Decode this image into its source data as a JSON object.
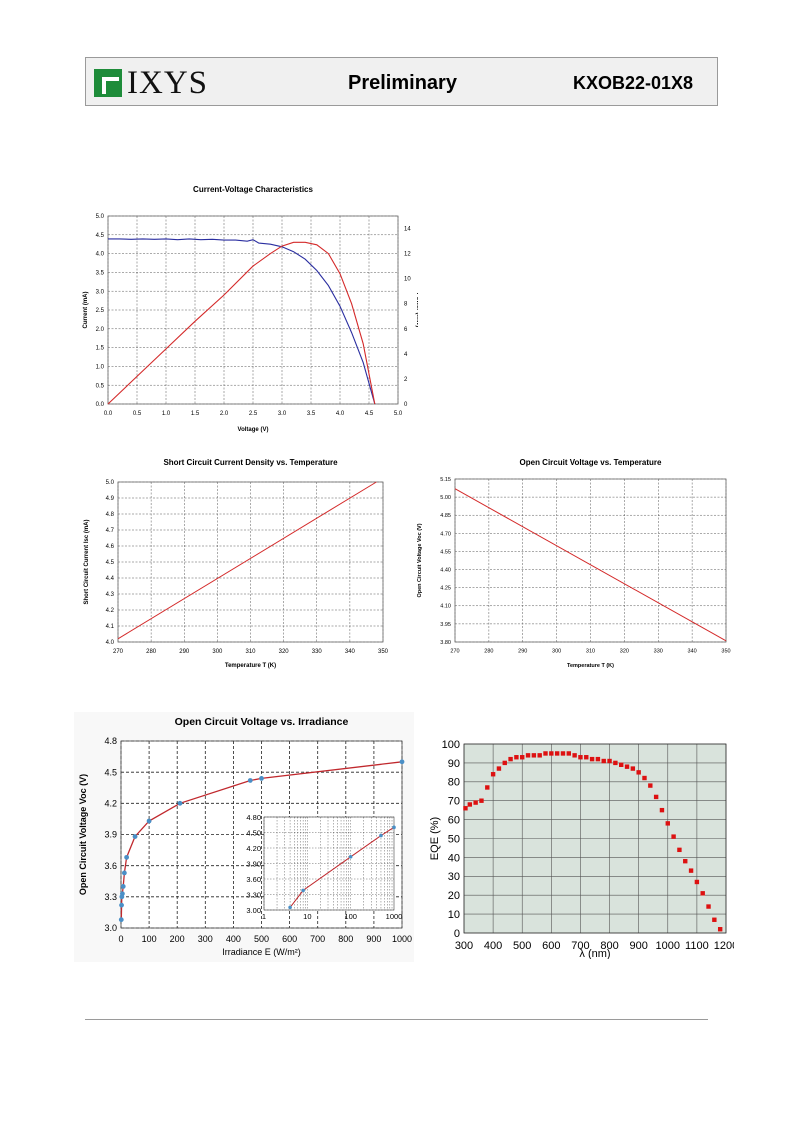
{
  "header": {
    "logo_text": "IXYS",
    "status": "Preliminary",
    "part_number": "KXOB22-01X8",
    "brand_color": "#1e8c3a"
  },
  "chart_data": [
    {
      "id": "c1",
      "type": "line",
      "title": "Current-Voltage Characteristics",
      "xlabel": "Voltage (V)",
      "ylabel": "Current  (mA)",
      "y2label": "Power (mW)",
      "xlim": [
        0,
        5
      ],
      "ylim": [
        0,
        5
      ],
      "y2lim": [
        0,
        15
      ],
      "xticks": [
        0,
        0.5,
        1,
        1.5,
        2,
        2.5,
        3,
        3.5,
        4,
        4.5,
        5
      ],
      "xtick_labels": [
        "0.0",
        "0.5",
        "1.0",
        "1.5",
        "2.0",
        "2.5",
        "3.0",
        "3.5",
        "4.0",
        "4.5",
        "5.0"
      ],
      "yticks": [
        0,
        0.5,
        1,
        1.5,
        2,
        2.5,
        3,
        3.5,
        4,
        4.5,
        5
      ],
      "ytick_labels": [
        "0.0",
        "0.5",
        "1.0",
        "1.5",
        "2.0",
        "2.5",
        "3.0",
        "3.5",
        "4.0",
        "4.5",
        "5.0"
      ],
      "y2ticks": [
        0,
        2,
        4,
        6,
        8,
        10,
        12,
        14
      ],
      "y2tick_labels": [
        "0",
        "2",
        "4",
        "6",
        "8",
        "10",
        "12",
        "14"
      ],
      "grid": true,
      "series": [
        {
          "color": "#2a2ea0",
          "axis": "y",
          "x": [
            0,
            0.2,
            0.4,
            0.6,
            0.8,
            1.0,
            1.2,
            1.4,
            1.6,
            1.8,
            2.0,
            2.2,
            2.4,
            2.5,
            2.6,
            2.8,
            3.0,
            3.2,
            3.4,
            3.6,
            3.8,
            4.0,
            4.2,
            4.4,
            4.5,
            4.6
          ],
          "y": [
            4.39,
            4.39,
            4.38,
            4.39,
            4.38,
            4.39,
            4.37,
            4.39,
            4.37,
            4.38,
            4.36,
            4.36,
            4.33,
            4.37,
            4.28,
            4.25,
            4.18,
            4.05,
            3.85,
            3.55,
            3.15,
            2.6,
            1.9,
            1.1,
            0.55,
            0
          ]
        },
        {
          "color": "#d42a2a",
          "axis": "y2",
          "x": [
            0,
            0.5,
            1.0,
            1.5,
            2.0,
            2.5,
            2.8,
            3.0,
            3.2,
            3.4,
            3.6,
            3.8,
            4.0,
            4.2,
            4.4,
            4.6
          ],
          "y": [
            0,
            2.2,
            4.4,
            6.6,
            8.7,
            11.0,
            12.0,
            12.6,
            12.9,
            12.9,
            12.7,
            12.0,
            10.4,
            8.0,
            4.8,
            0
          ]
        }
      ]
    },
    {
      "id": "c2",
      "type": "line",
      "title": "Short Circuit Current Density vs. Temperature",
      "xlabel": "Temperature T (K)",
      "ylabel": "Short Circuit Current Isc (mA)",
      "xlim": [
        270,
        350
      ],
      "ylim": [
        4.0,
        5.0
      ],
      "xticks": [
        270,
        280,
        290,
        300,
        310,
        320,
        330,
        340,
        350
      ],
      "xtick_labels": [
        "270",
        "280",
        "290",
        "300",
        "310",
        "320",
        "330",
        "340",
        "350"
      ],
      "yticks": [
        4.0,
        4.1,
        4.2,
        4.3,
        4.4,
        4.5,
        4.6,
        4.7,
        4.8,
        4.9,
        5.0
      ],
      "ytick_labels": [
        "4.0",
        "4.1",
        "4.2",
        "4.3",
        "4.4",
        "4.5",
        "4.6",
        "4.7",
        "4.8",
        "4.9",
        "5.0"
      ],
      "grid": true,
      "series": [
        {
          "color": "#d42a2a",
          "x": [
            270,
            348
          ],
          "y": [
            4.02,
            5.0
          ]
        }
      ]
    },
    {
      "id": "c3",
      "type": "line",
      "title": "Open Circuit Voltage vs. Temperature",
      "xlabel": "Temperature T (K)",
      "ylabel": "Open Circuit Voltage Voc (V)",
      "xlim": [
        270,
        350
      ],
      "ylim": [
        3.8,
        5.15
      ],
      "xticks": [
        270,
        280,
        290,
        300,
        310,
        320,
        330,
        340,
        350
      ],
      "xtick_labels": [
        "270",
        "280",
        "290",
        "300",
        "310",
        "320",
        "330",
        "340",
        "350"
      ],
      "yticks": [
        3.8,
        3.95,
        4.1,
        4.25,
        4.4,
        4.55,
        4.7,
        4.85,
        5.0,
        5.15
      ],
      "ytick_labels": [
        "3.80",
        "3.95",
        "4.10",
        "4.25",
        "4.40",
        "4.55",
        "4.70",
        "4.85",
        "5.00",
        "5.15"
      ],
      "grid": true,
      "series": [
        {
          "color": "#d42a2a",
          "x": [
            270,
            350
          ],
          "y": [
            5.07,
            3.81
          ]
        }
      ]
    },
    {
      "id": "c4",
      "type": "line",
      "title": "Open Circuit Voltage vs. Irradiance",
      "xlabel": "Irradiance E (W/m²)",
      "ylabel": "Open Circuit Voltage Voc (V)",
      "xlim": [
        0,
        1000
      ],
      "ylim": [
        3.0,
        4.8
      ],
      "xticks": [
        0,
        100,
        200,
        300,
        400,
        500,
        600,
        700,
        800,
        900,
        1000
      ],
      "xtick_labels": [
        "0",
        "100",
        "200",
        "300",
        "400",
        "500",
        "600",
        "700",
        "800",
        "900",
        "1000"
      ],
      "yticks": [
        3.0,
        3.3,
        3.6,
        3.9,
        4.2,
        4.5,
        4.8
      ],
      "ytick_labels": [
        "3.0",
        "3.3",
        "3.6",
        "3.9",
        "4.2",
        "4.5",
        "4.8"
      ],
      "grid": true,
      "series": [
        {
          "color": "#c0282d",
          "marker_color": "#4a8fc6",
          "x": [
            1,
            2,
            3,
            5,
            8,
            12,
            20,
            50,
            100,
            210,
            460,
            500,
            1000
          ],
          "y": [
            3.08,
            3.22,
            3.3,
            3.33,
            3.4,
            3.53,
            3.68,
            3.88,
            4.03,
            4.2,
            4.42,
            4.44,
            4.6
          ],
          "markers": [
            true,
            true,
            true,
            true,
            true,
            true,
            true,
            true,
            true,
            true,
            true,
            true,
            true
          ]
        }
      ],
      "inset": {
        "xscale": "log",
        "xlim": [
          1,
          1000
        ],
        "ylim": [
          3.0,
          4.8
        ],
        "xticks": [
          1,
          10,
          100,
          1000
        ],
        "xtick_labels": [
          "1",
          "10",
          "100",
          "1000"
        ],
        "yticks": [
          3.0,
          3.3,
          3.6,
          3.9,
          4.2,
          4.5,
          4.8
        ],
        "ytick_labels": [
          "3.00",
          "3.30",
          "3.60",
          "3.90",
          "4.20",
          "4.50",
          "4.80"
        ],
        "points_x": [
          4,
          8,
          100,
          500,
          1000
        ],
        "points_y": [
          3.05,
          3.38,
          4.03,
          4.44,
          4.6
        ]
      }
    },
    {
      "id": "c5",
      "type": "scatter",
      "xlabel": "λ (nm)",
      "ylabel": "EQE (%)",
      "xlim": [
        300,
        1200
      ],
      "ylim": [
        0,
        100
      ],
      "xticks": [
        300,
        400,
        500,
        600,
        700,
        800,
        900,
        1000,
        1100,
        1200
      ],
      "xtick_labels": [
        "300",
        "400",
        "500",
        "600",
        "700",
        "800",
        "900",
        "1000",
        "1100",
        "1200"
      ],
      "yticks": [
        0,
        10,
        20,
        30,
        40,
        50,
        60,
        70,
        80,
        90,
        100
      ],
      "ytick_labels": [
        "0",
        "10",
        "20",
        "30",
        "40",
        "50",
        "60",
        "70",
        "80",
        "90",
        "100"
      ],
      "grid": true,
      "background": "#d9e3dc",
      "series": [
        {
          "color": "#dd1111",
          "x": [
            305,
            320,
            340,
            360,
            380,
            400,
            420,
            440,
            460,
            480,
            500,
            520,
            540,
            560,
            580,
            600,
            620,
            640,
            660,
            680,
            700,
            720,
            740,
            760,
            780,
            800,
            820,
            840,
            860,
            880,
            900,
            920,
            940,
            960,
            980,
            1000,
            1020,
            1040,
            1060,
            1080,
            1100,
            1120,
            1140,
            1160,
            1180
          ],
          "y": [
            66,
            68,
            69,
            70,
            77,
            84,
            87,
            90,
            92,
            93,
            93,
            94,
            94,
            94,
            95,
            95,
            95,
            95,
            95,
            94,
            93,
            93,
            92,
            92,
            91,
            91,
            90,
            89,
            88,
            87,
            85,
            82,
            78,
            72,
            65,
            58,
            51,
            44,
            38,
            33,
            27,
            21,
            14,
            7,
            2
          ]
        }
      ]
    }
  ]
}
